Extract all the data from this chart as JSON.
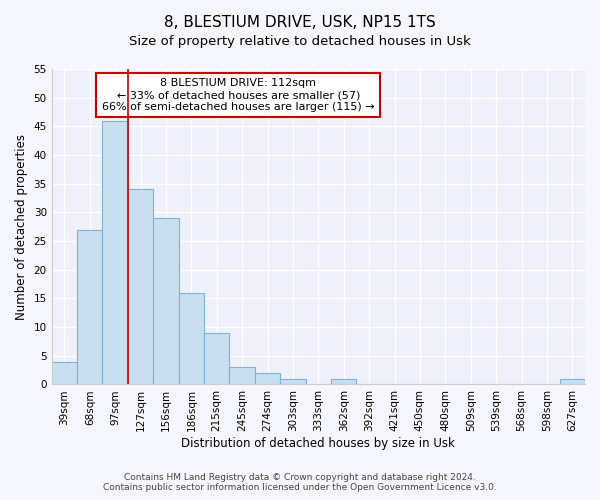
{
  "title": "8, BLESTIUM DRIVE, USK, NP15 1TS",
  "subtitle": "Size of property relative to detached houses in Usk",
  "xlabel": "Distribution of detached houses by size in Usk",
  "ylabel": "Number of detached properties",
  "bar_labels": [
    "39sqm",
    "68sqm",
    "97sqm",
    "127sqm",
    "156sqm",
    "186sqm",
    "215sqm",
    "245sqm",
    "274sqm",
    "303sqm",
    "333sqm",
    "362sqm",
    "392sqm",
    "421sqm",
    "450sqm",
    "480sqm",
    "509sqm",
    "539sqm",
    "568sqm",
    "598sqm",
    "627sqm"
  ],
  "bar_values": [
    4,
    27,
    46,
    34,
    29,
    16,
    9,
    3,
    2,
    1,
    0,
    1,
    0,
    0,
    0,
    0,
    0,
    0,
    0,
    0,
    1
  ],
  "bar_fill_color": "#c9dff0",
  "bar_edge_color": "#7ab3d4",
  "property_line_x": 2.5,
  "property_line_color": "#cc0000",
  "annotation_title": "8 BLESTIUM DRIVE: 112sqm",
  "annotation_line1": "← 33% of detached houses are smaller (57)",
  "annotation_line2": "66% of semi-detached houses are larger (115) →",
  "annotation_box_facecolor": "#ffffff",
  "annotation_box_edgecolor": "#cc0000",
  "ylim": [
    0,
    55
  ],
  "yticks": [
    0,
    5,
    10,
    15,
    20,
    25,
    30,
    35,
    40,
    45,
    50,
    55
  ],
  "footer_line1": "Contains HM Land Registry data © Crown copyright and database right 2024.",
  "footer_line2": "Contains public sector information licensed under the Open Government Licence v3.0.",
  "fig_bg_color": "#f5f7ff",
  "plot_bg_color": "#eef1fb",
  "grid_color": "#ffffff",
  "title_fontsize": 11,
  "subtitle_fontsize": 9.5,
  "axis_label_fontsize": 8.5,
  "tick_fontsize": 7.5,
  "annotation_fontsize": 8,
  "footer_fontsize": 6.5
}
